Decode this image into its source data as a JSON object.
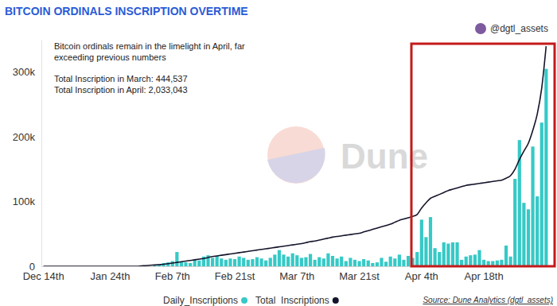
{
  "chart_data": {
    "type": "bar",
    "title": "BITCOIN ORDINALS INSCRIPTION OVERTIME",
    "credit": "@dgtl_assets",
    "watermark": "Dune",
    "annotations": [
      "Bitcoin ordinals remain in the limelight in April, far",
      "exceeding previous numbers",
      "Total Inscription in March: 444,537",
      "Total Inscription in April: 2,033,043"
    ],
    "source": "Source: Dune Analytics (dgtl_assets)",
    "categories": [
      "Dec 14th",
      null,
      null,
      null,
      null,
      null,
      null,
      null,
      null,
      null,
      null,
      null,
      null,
      null,
      null,
      "Jan 24th",
      null,
      null,
      null,
      null,
      null,
      null,
      null,
      null,
      null,
      null,
      null,
      null,
      null,
      "Feb 7th",
      null,
      null,
      null,
      null,
      null,
      null,
      null,
      null,
      null,
      null,
      null,
      null,
      null,
      "Feb 21st",
      null,
      null,
      null,
      null,
      null,
      null,
      null,
      null,
      null,
      null,
      null,
      null,
      null,
      "Mar 7th",
      null,
      null,
      null,
      null,
      null,
      null,
      null,
      null,
      null,
      null,
      null,
      null,
      null,
      "Mar 21st",
      null,
      null,
      null,
      null,
      null,
      null,
      null,
      null,
      null,
      null,
      null,
      null,
      null,
      "Apr 4th",
      null,
      null,
      null,
      null,
      null,
      null,
      null,
      null,
      null,
      null,
      null,
      null,
      null,
      "Apr 18th",
      null,
      null,
      null,
      null,
      null,
      null,
      null,
      null,
      null,
      null,
      null,
      null,
      null,
      null
    ],
    "series": [
      {
        "name": "Daily_Inscriptions",
        "type": "bar",
        "color": "#36c9c6",
        "values": [
          0,
          0,
          0,
          0,
          0,
          0,
          0,
          0,
          0,
          0,
          0,
          0,
          0,
          0,
          0,
          0,
          0,
          0,
          0,
          0,
          0,
          0,
          0,
          0,
          0,
          1000,
          3000,
          5000,
          6000,
          8000,
          22000,
          7000,
          6000,
          5000,
          10000,
          9000,
          15000,
          17000,
          13000,
          16000,
          12000,
          10000,
          12000,
          11000,
          15000,
          13000,
          10000,
          11000,
          14000,
          12000,
          9000,
          13000,
          18000,
          25000,
          18000,
          15000,
          20000,
          17000,
          13000,
          14000,
          19000,
          10000,
          14000,
          12000,
          20000,
          16000,
          12000,
          15000,
          8000,
          13000,
          10000,
          8000,
          11000,
          9000,
          5000,
          6000,
          13000,
          7000,
          15000,
          12000,
          18000,
          10000,
          16000,
          13000,
          22000,
          72000,
          45000,
          76000,
          28000,
          22000,
          37000,
          35000,
          37000,
          37000,
          10000,
          15000,
          17000,
          18000,
          25000,
          10000,
          8000,
          8000,
          9000,
          10000,
          32000,
          15000,
          135000,
          195000,
          98000,
          88000,
          185000,
          108000,
          222000,
          305000
        ]
      },
      {
        "name": "Total  Inscriptions",
        "type": "line",
        "color": "#14142b",
        "values": [
          0,
          0,
          0,
          0,
          0,
          0,
          0,
          0,
          0,
          0,
          0,
          0,
          0,
          0,
          0,
          0,
          0,
          0,
          0,
          0,
          0,
          0,
          500,
          1000,
          1500,
          2000,
          2500,
          3000,
          4000,
          5000,
          6000,
          7000,
          8000,
          9000,
          10000,
          11000,
          12000,
          13500,
          15000,
          16000,
          17000,
          18000,
          19000,
          20000,
          21000,
          22000,
          23000,
          24000,
          25000,
          26000,
          27000,
          28000,
          29000,
          30000,
          31000,
          32000,
          33000,
          34000,
          35000,
          36500,
          38000,
          39000,
          40500,
          42000,
          43500,
          45000,
          46000,
          47000,
          48000,
          49000,
          50000,
          51000,
          53000,
          55000,
          57000,
          59000,
          61000,
          63000,
          65000,
          68000,
          71000,
          73000,
          75000,
          77000,
          80000,
          90000,
          98000,
          105000,
          108000,
          111000,
          114000,
          117000,
          119000,
          121000,
          123000,
          125000,
          126000,
          127000,
          128000,
          129000,
          130000,
          131000,
          132000,
          133000,
          136000,
          140000,
          150000,
          165000,
          178000,
          190000,
          210000,
          235000,
          275000,
          340000
        ]
      }
    ],
    "ylim": [
      0,
      350000
    ],
    "yticks": [
      0,
      {
        "value": 100000,
        "label": "100k"
      },
      {
        "value": 200000,
        "label": "200k"
      },
      {
        "value": 300000,
        "label": "300k"
      }
    ],
    "grid": false,
    "legend": "bottom"
  }
}
